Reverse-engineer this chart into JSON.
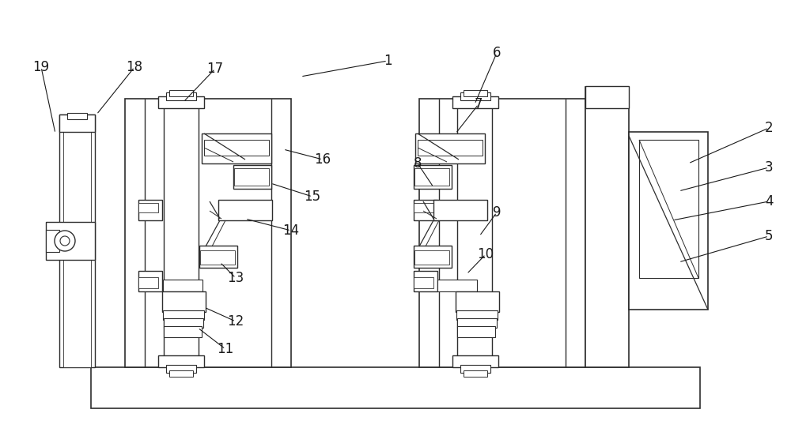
{
  "bg_color": "#ffffff",
  "line_color": "#2d2d2d",
  "fig_width": 10.0,
  "fig_height": 5.47,
  "dpi": 100
}
